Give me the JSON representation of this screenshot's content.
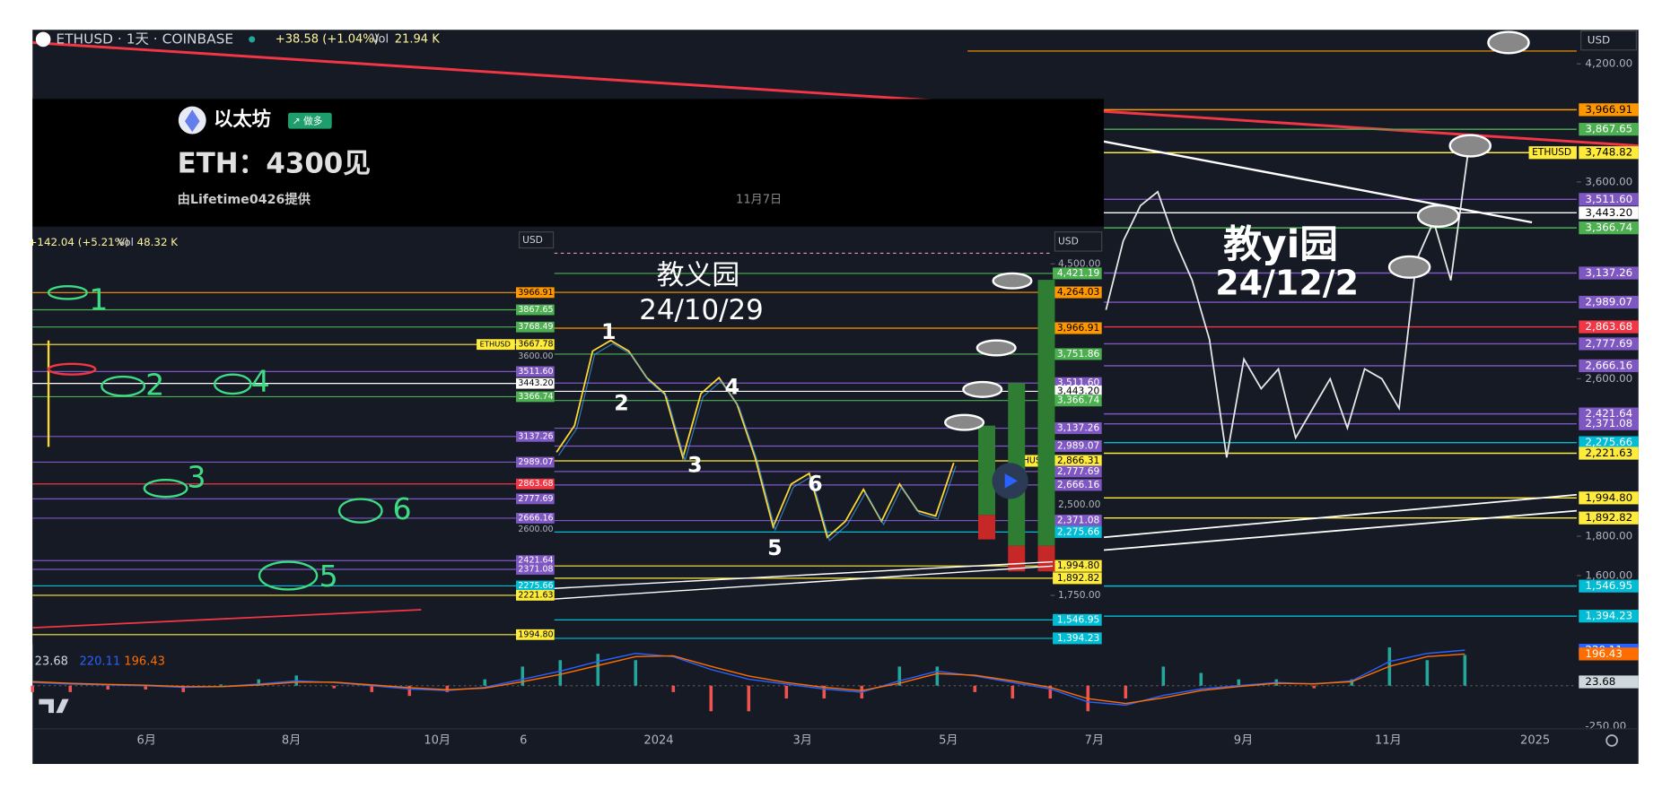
{
  "header": {
    "symbol": "ETHUSD · 1天 · COINBASE",
    "change": "+38.58 (+1.04%)",
    "vol_label": "Vol",
    "vol": "21.94 K",
    "currency": "USD"
  },
  "banner": {
    "name": "以太坊",
    "badge": "↗ 做多",
    "headline": "ETH：4300见",
    "credit": "由Lifetime0426提供",
    "date": "11月7日"
  },
  "main": {
    "ylim": [
      1300,
      4400
    ],
    "yticks": [
      {
        "value": 4200,
        "label": "4,200.00"
      },
      {
        "value": 3600,
        "label": "3,600.00"
      },
      {
        "value": 2600,
        "label": "2,600.00"
      },
      {
        "value": 1800,
        "label": "1,800.00"
      },
      {
        "value": 1600,
        "label": "1,600.00"
      }
    ],
    "levels": [
      {
        "value": 3966.91,
        "label": "3,966.91",
        "color": "#ff9800"
      },
      {
        "value": 3867.65,
        "label": "3,867.65",
        "color": "#4caf50"
      },
      {
        "value": 3748.82,
        "label": "3,748.82",
        "color": "#ffeb3b",
        "tag": "ETHUSD"
      },
      {
        "value": 3511.6,
        "label": "3,511.60",
        "color": "#7e57c2"
      },
      {
        "value": 3443.2,
        "label": "3,443.20",
        "color": "#ffffff"
      },
      {
        "value": 3366.74,
        "label": "3,366.74",
        "color": "#4caf50"
      },
      {
        "value": 3137.26,
        "label": "3,137.26",
        "color": "#7e57c2"
      },
      {
        "value": 2989.07,
        "label": "2,989.07",
        "color": "#7e57c2"
      },
      {
        "value": 2863.68,
        "label": "2,863.68",
        "color": "#f23645"
      },
      {
        "value": 2777.69,
        "label": "2,777.69",
        "color": "#7e57c2"
      },
      {
        "value": 2666.16,
        "label": "2,666.16",
        "color": "#7e57c2"
      },
      {
        "value": 2421.64,
        "label": "2,421.64",
        "color": "#7e57c2"
      },
      {
        "value": 2371.08,
        "label": "2,371.08",
        "color": "#7e57c2"
      },
      {
        "value": 2275.66,
        "label": "2,275.66",
        "color": "#00bcd4"
      },
      {
        "value": 2221.63,
        "label": "2,221.63",
        "color": "#ffeb3b"
      },
      {
        "value": 1994.8,
        "label": "1,994.80",
        "color": "#ffeb3b"
      },
      {
        "value": 1892.82,
        "label": "1,892.82",
        "color": "#ffeb3b"
      },
      {
        "value": 1546.95,
        "label": "1,546.95",
        "color": "#00bcd4"
      },
      {
        "value": 1394.23,
        "label": "1,394.23",
        "color": "#00bcd4"
      }
    ],
    "price": [
      2950,
      3300,
      3480,
      3550,
      3300,
      3100,
      2800,
      2200,
      2700,
      2550,
      2650,
      2300,
      2450,
      2600,
      2350,
      2650,
      2600,
      2450,
      3200,
      3400,
      3100,
      3750
    ],
    "annotations": [
      "教yi园",
      "24/12/2"
    ]
  },
  "inset": {
    "change": "+142.04 (+5.21%)",
    "vol_label": "Vol",
    "vol": "48.32 K",
    "currency": "USD",
    "ylim": [
      1300,
      4600
    ],
    "yticks": [
      {
        "value": 4500,
        "label": "4,500.00"
      },
      {
        "value": 2500,
        "label": "2,500.00"
      },
      {
        "value": 1750,
        "label": "1,750.00"
      }
    ],
    "levels": [
      {
        "value": 4421.19,
        "label": "4,421.19",
        "color": "#4caf50"
      },
      {
        "value": 4264.03,
        "label": "4,264.03",
        "color": "#ff9800"
      },
      {
        "value": 3966.91,
        "label": "3,966.91",
        "color": "#ff9800"
      },
      {
        "value": 3751.86,
        "label": "3,751.86",
        "color": "#4caf50"
      },
      {
        "value": 3511.6,
        "label": "3,511.60",
        "color": "#7e57c2"
      },
      {
        "value": 3443.2,
        "label": "3,443.20",
        "color": "#ffffff"
      },
      {
        "value": 3366.74,
        "label": "3,366.74",
        "color": "#4caf50"
      },
      {
        "value": 3137.26,
        "label": "3,137.26",
        "color": "#7e57c2"
      },
      {
        "value": 2989.07,
        "label": "2,989.07",
        "color": "#7e57c2"
      },
      {
        "value": 2866.31,
        "label": "2,866.31",
        "color": "#ffeb3b",
        "tag": "ETHUSD"
      },
      {
        "value": 2777.69,
        "label": "2,777.69",
        "color": "#7e57c2"
      },
      {
        "value": 2666.16,
        "label": "2,666.16",
        "color": "#7e57c2"
      },
      {
        "value": 2371.08,
        "label": "2,371.08",
        "color": "#7e57c2"
      },
      {
        "value": 2275.66,
        "label": "2,275.66",
        "color": "#00bcd4"
      },
      {
        "value": 1994.8,
        "label": "1,994.80",
        "color": "#ffeb3b"
      },
      {
        "value": 1892.82,
        "label": "1,892.82",
        "color": "#ffeb3b"
      },
      {
        "value": 1546.95,
        "label": "1,546.95",
        "color": "#00bcd4"
      },
      {
        "value": 1394.23,
        "label": "1,394.23",
        "color": "#00bcd4"
      }
    ],
    "price": [
      2938,
      3159,
      3777,
      3865,
      3777,
      3556,
      3424,
      2894,
      3424,
      3556,
      3336,
      2894,
      2320,
      2674,
      2762,
      2232,
      2365,
      2630,
      2365,
      2674,
      2453,
      2409,
      2850
    ],
    "annotations": [
      "教义园",
      "24/10/29"
    ],
    "waves": [
      "1",
      "2",
      "3",
      "4",
      "5",
      "6"
    ]
  },
  "inset_left": {
    "ylim": [
      1900,
      4200
    ],
    "yticks": [
      {
        "value": 3600,
        "label": "3600.00"
      },
      {
        "value": 2600,
        "label": "2600.00"
      }
    ],
    "levels": [
      {
        "value": 3966.91,
        "label": "3966.91",
        "color": "#ff9800"
      },
      {
        "value": 3867.65,
        "label": "3867.65",
        "color": "#4caf50"
      },
      {
        "value": 3768.49,
        "label": "3768.49",
        "color": "#4caf50"
      },
      {
        "value": 3667.78,
        "label": "3667.78",
        "color": "#ffeb3b",
        "tag": "ETHUSD"
      },
      {
        "value": 3511.6,
        "label": "3511.60",
        "color": "#7e57c2"
      },
      {
        "value": 3443.2,
        "label": "3443.20",
        "color": "#ffffff"
      },
      {
        "value": 3366.74,
        "label": "3366.74",
        "color": "#4caf50"
      },
      {
        "value": 3137.26,
        "label": "3137.26",
        "color": "#7e57c2"
      },
      {
        "value": 2989.07,
        "label": "2989.07",
        "color": "#7e57c2"
      },
      {
        "value": 2863.68,
        "label": "2863.68",
        "color": "#f23645"
      },
      {
        "value": 2777.69,
        "label": "2777.69",
        "color": "#7e57c2"
      },
      {
        "value": 2666.16,
        "label": "2666.16",
        "color": "#7e57c2"
      },
      {
        "value": 2421.64,
        "label": "2421.64",
        "color": "#7e57c2"
      },
      {
        "value": 2371.08,
        "label": "2371.08",
        "color": "#7e57c2"
      },
      {
        "value": 2275.66,
        "label": "2275.66",
        "color": "#00bcd4"
      },
      {
        "value": 2221.63,
        "label": "2221.63",
        "color": "#ffeb3b"
      },
      {
        "value": 1994.8,
        "label": "1994.80",
        "color": "#ffeb3b"
      }
    ],
    "marks": [
      "1",
      "2",
      "4",
      "3",
      "6",
      "5"
    ]
  },
  "macd": {
    "ylim": [
      -300,
      260
    ],
    "yticks": [
      {
        "value": -250,
        "label": "-250.00"
      }
    ],
    "legend": [
      {
        "value": 23.68,
        "label": "23.68",
        "color": "#cfd8dc"
      },
      {
        "value": 220.11,
        "label": "220.11",
        "color": "#2962ff"
      },
      {
        "value": 196.43,
        "label": "196.43",
        "color": "#ff6d00"
      }
    ],
    "macd": [
      20,
      10,
      5,
      0,
      -10,
      -5,
      10,
      30,
      20,
      0,
      -20,
      -30,
      -10,
      40,
      90,
      150,
      200,
      180,
      100,
      40,
      10,
      -20,
      -40,
      30,
      90,
      60,
      20,
      -20,
      -100,
      -120,
      -60,
      -20,
      0,
      20,
      10,
      30,
      150,
      200,
      220
    ],
    "signal": [
      25,
      15,
      8,
      3,
      -5,
      -6,
      5,
      22,
      22,
      5,
      -12,
      -25,
      -15,
      25,
      70,
      125,
      180,
      185,
      120,
      60,
      20,
      -10,
      -30,
      15,
      75,
      65,
      30,
      -10,
      -80,
      -110,
      -75,
      -30,
      -5,
      15,
      12,
      25,
      120,
      180,
      196
    ]
  },
  "time_axis": [
    "6月",
    "8月",
    "10月",
    "6",
    "2024",
    "3月",
    "5月",
    "7月",
    "9月",
    "11月",
    "2025"
  ]
}
